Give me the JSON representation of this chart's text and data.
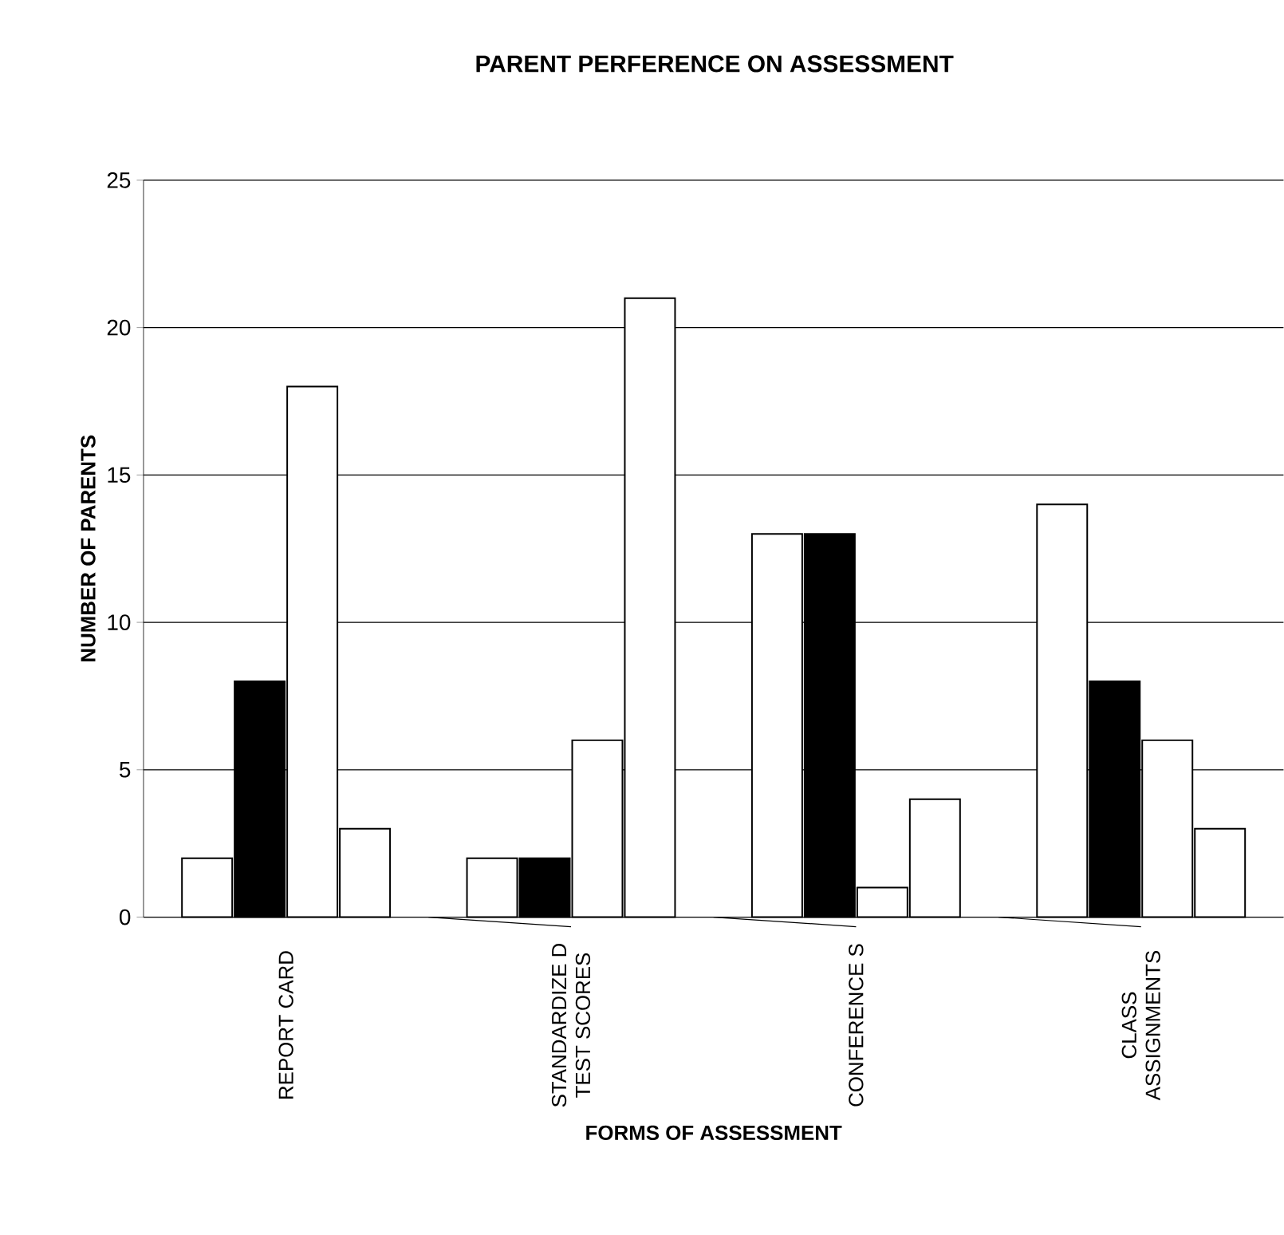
{
  "chart_data": {
    "type": "bar",
    "title": "PARENT PERFERENCE ON ASSESSMENT",
    "xlabel": "FORMS OF ASSESSMENT",
    "ylabel": "NUMBER OF PARENTS",
    "categories": [
      "REPORT CARD",
      "STANDARDIZE D TEST SCORES",
      "CONFERENCE S",
      "CLASS ASSIGNMENTS"
    ],
    "series": [
      {
        "color": "#ffffff",
        "values": [
          2,
          2,
          13,
          14
        ]
      },
      {
        "color": "#000000",
        "values": [
          8,
          2,
          13,
          8
        ]
      },
      {
        "color": "#ffffff",
        "values": [
          18,
          6,
          1,
          6
        ]
      },
      {
        "color": "#ffffff",
        "values": [
          3,
          21,
          4,
          3
        ]
      }
    ],
    "ylim": [
      0,
      25
    ],
    "yticks": [
      0,
      5,
      10,
      15,
      20,
      25
    ],
    "grid": "y"
  }
}
